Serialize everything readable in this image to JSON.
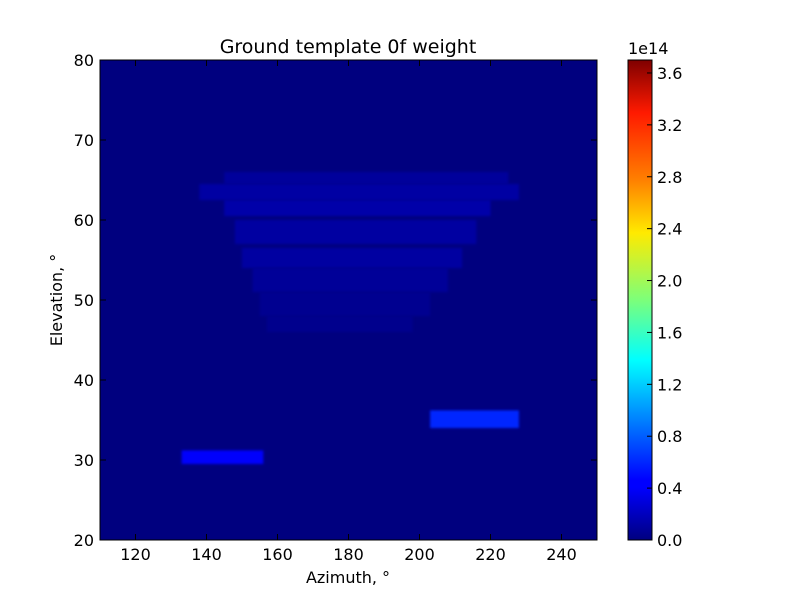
{
  "chart_data": {
    "type": "heatmap",
    "title": "Ground template 0f weight",
    "xlabel": "Azimuth, °",
    "ylabel": "Elevation, °",
    "xlim": [
      110,
      250
    ],
    "ylim": [
      20,
      80
    ],
    "xticks": [
      "120",
      "140",
      "160",
      "180",
      "200",
      "220",
      "240"
    ],
    "yticks": [
      "20",
      "30",
      "40",
      "50",
      "60",
      "70",
      "80"
    ],
    "colormap": "jet",
    "colorbar": {
      "range": [
        0.0,
        3.7
      ],
      "exponent_label": "1e14",
      "ticks": [
        "0.0",
        "0.4",
        "0.8",
        "1.2",
        "1.6",
        "2.0",
        "2.4",
        "2.8",
        "3.2",
        "3.6"
      ]
    },
    "grid": false,
    "regions": [
      {
        "az": [
          133,
          156
        ],
        "el": [
          29.5,
          31.2
        ],
        "value": 0.45
      },
      {
        "az": [
          203,
          228
        ],
        "el": [
          34.0,
          36.2
        ],
        "value": 0.6
      },
      {
        "az": [
          145,
          225
        ],
        "el": [
          64.5,
          66.0
        ],
        "value": 0.1
      },
      {
        "az": [
          138,
          228
        ],
        "el": [
          62.5,
          64.5
        ],
        "value": 0.13
      },
      {
        "az": [
          145,
          220
        ],
        "el": [
          60.5,
          62.5
        ],
        "value": 0.15
      },
      {
        "az": [
          148,
          216
        ],
        "el": [
          57.0,
          60.0
        ],
        "value": 0.12
      },
      {
        "az": [
          150,
          212
        ],
        "el": [
          54.0,
          56.5
        ],
        "value": 0.12
      },
      {
        "az": [
          153,
          208
        ],
        "el": [
          51.0,
          54.0
        ],
        "value": 0.09
      },
      {
        "az": [
          155,
          203
        ],
        "el": [
          48.0,
          51.0
        ],
        "value": 0.06
      },
      {
        "az": [
          157,
          198
        ],
        "el": [
          46.0,
          48.0
        ],
        "value": 0.05
      }
    ]
  }
}
